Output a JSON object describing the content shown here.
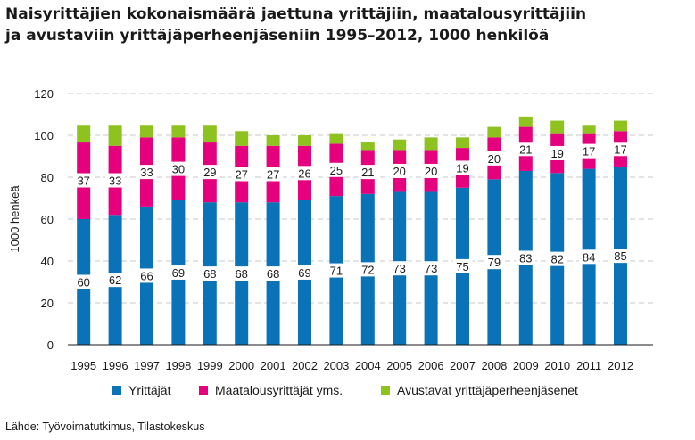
{
  "title_lines": [
    "Naisyrittäjien kokonaismäärä jaettuna yrittäjiin, maatalousyrittäjiin",
    "ja avustaviin yrittäjäperheenjäseniin 1995–2012, 1000 henkilöä"
  ],
  "source": "Lähde: Työvoimatutkimus, Tilastokeskus",
  "colors": {
    "yrittajat": "#0a73b8",
    "maatalous": "#e5007e",
    "avustavat": "#8dc21f",
    "grid": "#c8c8c8"
  },
  "chart_data": {
    "type": "bar",
    "stacked": true,
    "title": "Naisyrittäjien kokonaismäärä jaettuna yrittäjiin, maatalousyrittäjiin ja avustaviin yrittäjäperheenjäseniin 1995–2012, 1000 henkilöä",
    "xlabel": "",
    "ylabel": "1000 henkeä",
    "ylim": [
      0,
      120
    ],
    "yticks": [
      0,
      20,
      40,
      60,
      80,
      100,
      120
    ],
    "grid": "horizontal dashed",
    "legend": "bottom",
    "categories": [
      "1995",
      "1996",
      "1997",
      "1998",
      "1999",
      "2000",
      "2001",
      "2002",
      "2003",
      "2004",
      "2005",
      "2006",
      "2007",
      "2008",
      "2009",
      "2010",
      "2011",
      "2012"
    ],
    "series": [
      {
        "name": "Yrittäjät",
        "values": [
          60,
          62,
          66,
          69,
          68,
          68,
          68,
          69,
          71,
          72,
          73,
          73,
          75,
          79,
          83,
          82,
          84,
          85
        ],
        "labels": [
          "60",
          "62",
          "66",
          "69",
          "68",
          "68",
          "68",
          "69",
          "71",
          "72",
          "73",
          "73",
          "75",
          "79",
          "83",
          "82",
          "84",
          "85"
        ]
      },
      {
        "name": "Maatalousyrittäjät yms.",
        "values": [
          37,
          33,
          33,
          30,
          29,
          27,
          27,
          26,
          25,
          21,
          20,
          20,
          19,
          20,
          21,
          19,
          17,
          17
        ],
        "labels": [
          "37",
          "33",
          "33",
          "30",
          "29",
          "27",
          "27",
          "26",
          "25",
          "21",
          "20",
          "20",
          "19",
          "20",
          "21",
          "19",
          "17",
          "17"
        ]
      },
      {
        "name": "Avustavat yrittäjäperheenjäsenet",
        "values": [
          8,
          10,
          6,
          6,
          8,
          7,
          5,
          5,
          5,
          4,
          5,
          6,
          5,
          5,
          5,
          6,
          4,
          5
        ]
      }
    ]
  }
}
